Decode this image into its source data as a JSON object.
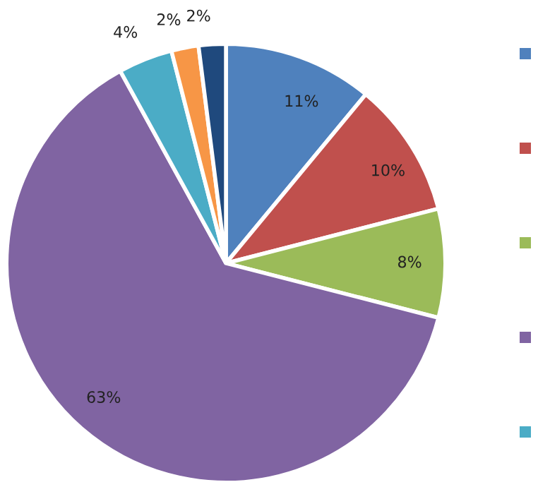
{
  "chart_data": {
    "type": "pie",
    "categories": [
      null,
      null,
      null,
      null,
      null,
      null,
      null
    ],
    "values": [
      11,
      10,
      8,
      63,
      4,
      2,
      2
    ],
    "colors": [
      "#4f81bd",
      "#c0504d",
      "#9bbb59",
      "#8064a2",
      "#4bacc6",
      "#f79646",
      "#1f497d"
    ],
    "value_labels": [
      "11%",
      "10%",
      "8%",
      "63%",
      "4%",
      "2%",
      "2%"
    ]
  }
}
